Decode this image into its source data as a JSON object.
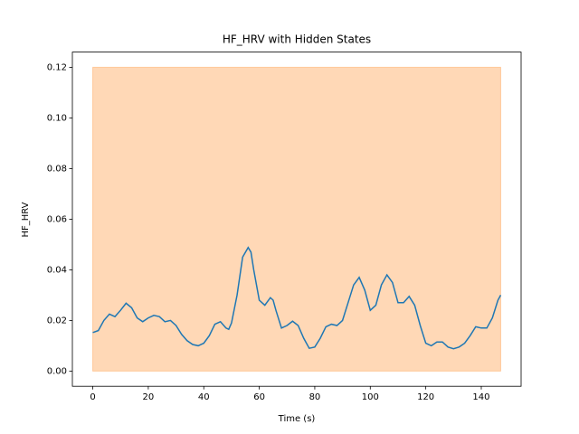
{
  "chart_data": {
    "type": "line",
    "title": "HF_HRV with Hidden States",
    "x_label": "Time (s)",
    "y_label": "HF_HRV",
    "x": [
      0,
      2,
      4,
      6,
      8,
      10,
      12,
      14,
      16,
      18,
      20,
      22,
      24,
      26,
      28,
      30,
      32,
      34,
      36,
      38,
      40,
      42,
      44,
      46,
      48,
      49,
      50,
      52,
      54,
      56,
      57,
      58,
      60,
      62,
      64,
      65,
      66,
      68,
      70,
      72,
      74,
      76,
      78,
      80,
      82,
      84,
      86,
      88,
      90,
      92,
      94,
      96,
      98,
      100,
      102,
      104,
      106,
      108,
      110,
      112,
      114,
      116,
      118,
      120,
      122,
      124,
      126,
      128,
      130,
      132,
      134,
      136,
      138,
      140,
      142,
      144,
      146,
      147
    ],
    "series": [
      {
        "color": "#1f77b4",
        "values": [
          0.0152,
          0.016,
          0.02,
          0.0225,
          0.0215,
          0.024,
          0.0268,
          0.025,
          0.021,
          0.0195,
          0.021,
          0.022,
          0.0215,
          0.0195,
          0.02,
          0.018,
          0.0145,
          0.012,
          0.0105,
          0.01,
          0.011,
          0.014,
          0.0185,
          0.0195,
          0.017,
          0.0165,
          0.019,
          0.03,
          0.045,
          0.0488,
          0.047,
          0.04,
          0.028,
          0.026,
          0.029,
          0.028,
          0.024,
          0.017,
          0.018,
          0.0197,
          0.018,
          0.013,
          0.009,
          0.0095,
          0.013,
          0.0175,
          0.0185,
          0.018,
          0.02,
          0.027,
          0.034,
          0.037,
          0.032,
          0.024,
          0.026,
          0.034,
          0.038,
          0.035,
          0.027,
          0.027,
          0.0295,
          0.026,
          0.018,
          0.011,
          0.01,
          0.0115,
          0.0115,
          0.0095,
          0.0088,
          0.0095,
          0.011,
          0.014,
          0.0175,
          0.017,
          0.017,
          0.021,
          0.028,
          0.03
        ]
      }
    ],
    "regions": [
      {
        "x0": 0,
        "x1": 147,
        "y0": 0,
        "y1": 0.12,
        "color": "#ff7f0e",
        "opacity": 0.3
      }
    ],
    "xlim": [
      -7.35,
      154.35
    ],
    "ylim": [
      -0.006,
      0.126
    ],
    "xticks": [
      0,
      20,
      40,
      60,
      80,
      100,
      120,
      140
    ],
    "yticks": [
      {
        "value": 0,
        "label": "0.00"
      },
      {
        "value": 0.02,
        "label": "0.02"
      },
      {
        "value": 0.04,
        "label": "0.04"
      },
      {
        "value": 0.06,
        "label": "0.06"
      },
      {
        "value": 0.08,
        "label": "0.08"
      },
      {
        "value": 0.1,
        "label": "0.10"
      },
      {
        "value": 0.12,
        "label": "0.12"
      }
    ]
  }
}
